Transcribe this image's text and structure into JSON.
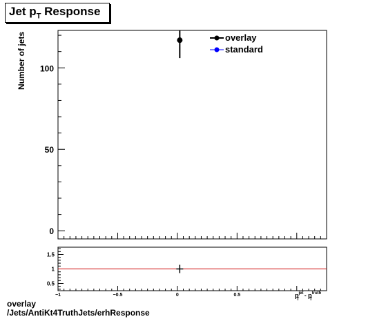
{
  "title": {
    "main": "Jet p",
    "sub": "T",
    "rest": " Response"
  },
  "chart_data": [
    {
      "type": "scatter",
      "ylabel": "Number of jets",
      "xlim": [
        -1,
        1.25
      ],
      "ylim": [
        -5,
        123
      ],
      "yticks": [
        {
          "value": 0,
          "label": "0"
        },
        {
          "value": 50,
          "label": "50"
        },
        {
          "value": 100,
          "label": "100"
        }
      ],
      "legend": {
        "placement": "top-right",
        "entries": [
          "overlay",
          "standard"
        ]
      },
      "series": [
        {
          "name": "overlay",
          "color": "#000000",
          "points": [
            {
              "x": 0.02,
              "y": 117,
              "yerr": 11
            }
          ]
        },
        {
          "name": "standard",
          "color": "#0000ff",
          "points": []
        }
      ]
    },
    {
      "type": "scatter",
      "xlim": [
        -1,
        1.25
      ],
      "ylim": [
        0.25,
        1.75
      ],
      "yticks": [
        {
          "value": 0.5,
          "label": "0.5"
        },
        {
          "value": 1,
          "label": "1"
        },
        {
          "value": 1.5,
          "label": "1.5"
        }
      ],
      "xticks": [
        {
          "value": -1,
          "label": "−1"
        },
        {
          "value": -0.5,
          "label": "−0.5"
        },
        {
          "value": 0,
          "label": "0"
        },
        {
          "value": 0.5,
          "label": "0.5"
        }
      ],
      "xlabel": "p_T^jet - p_T^truth",
      "xlabel_parts": {
        "p": "p",
        "sup1": "jet",
        "sub1": "T",
        "minus": " - p",
        "sup2": "truth",
        "sub2": "T"
      },
      "reference_line": {
        "y": 1,
        "color": "#cc0000"
      },
      "points": [
        {
          "x": 0.02,
          "y": 1
        }
      ]
    }
  ],
  "footer": {
    "line1": "overlay",
    "line2": "/Jets/AntiKt4TruthJets/erhResponse"
  }
}
